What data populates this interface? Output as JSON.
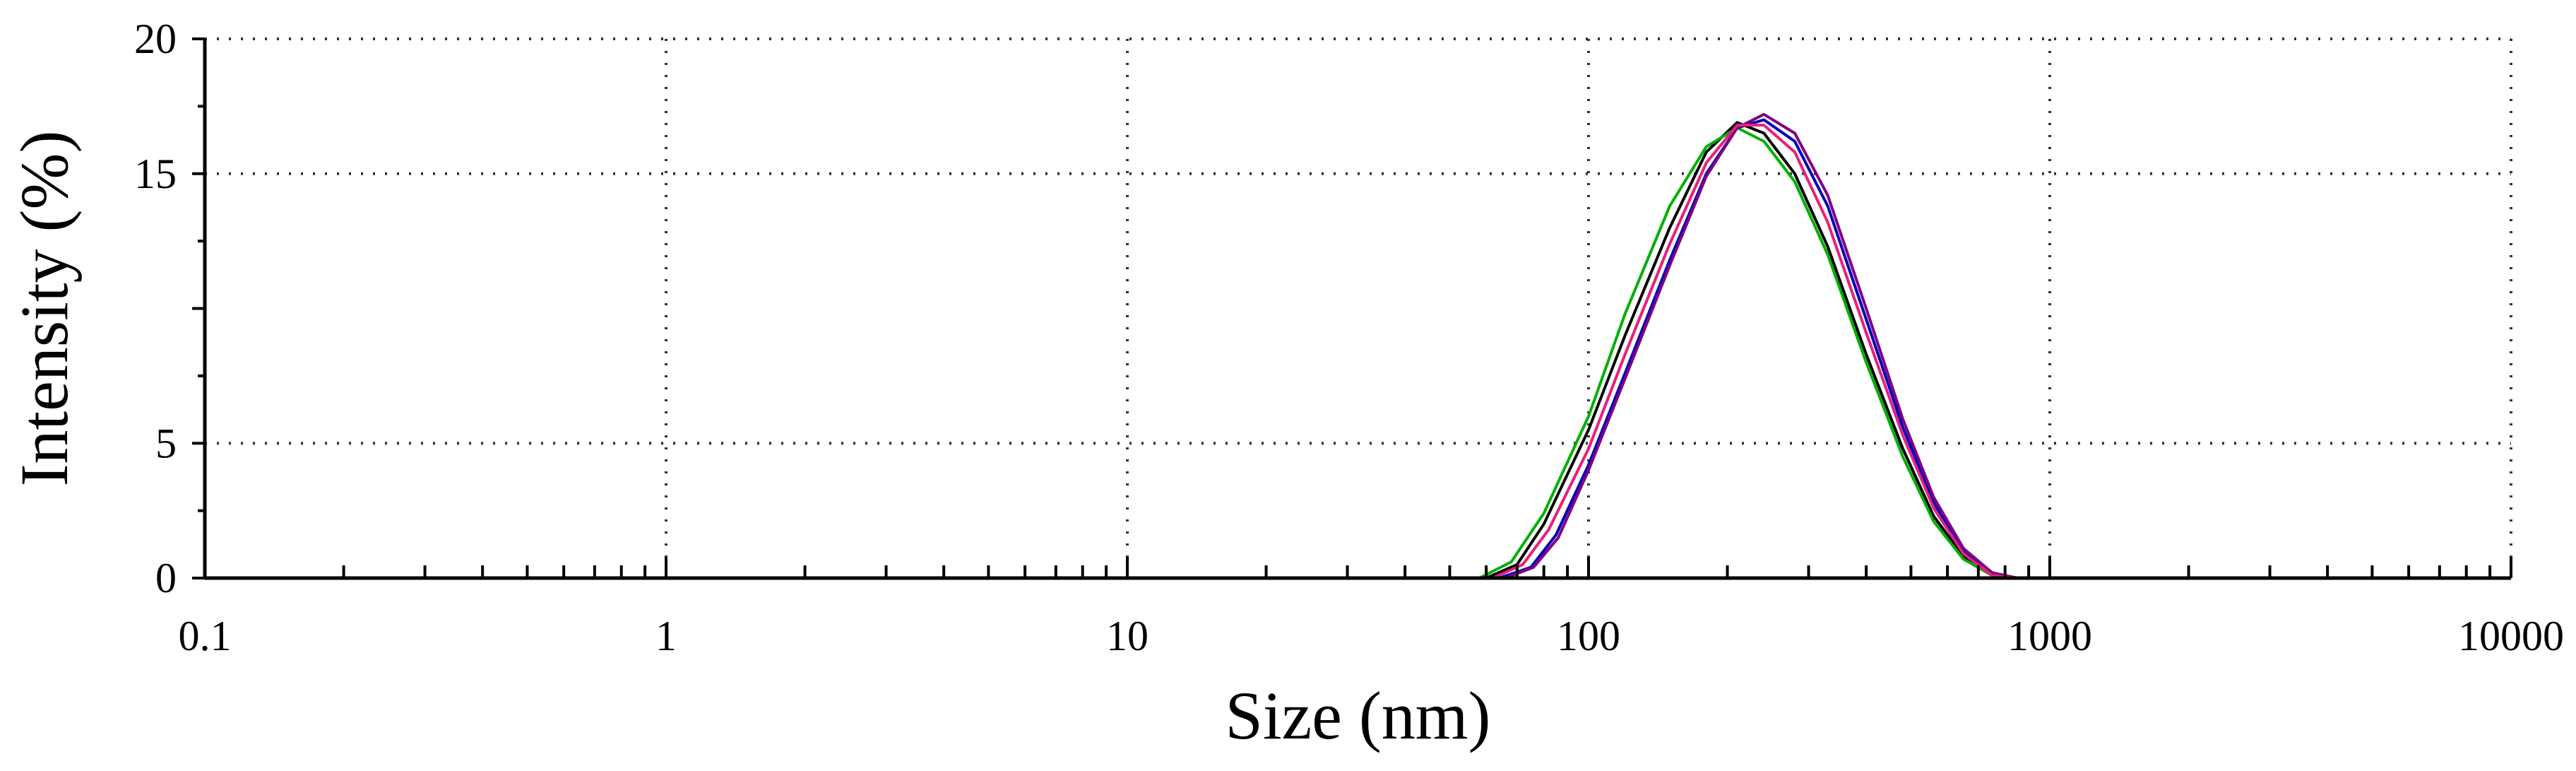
{
  "chart_data": {
    "type": "line",
    "xlabel": "Size (nm)",
    "ylabel": "Intensity (%)",
    "x_scale": "log",
    "xlim": [
      0.1,
      10000
    ],
    "ylim": [
      0,
      20
    ],
    "x_ticks": [
      0.1,
      1,
      10,
      100,
      1000,
      10000
    ],
    "x_tick_labels": [
      "0.1",
      "1",
      "10",
      "100",
      "1000",
      "10000"
    ],
    "y_ticks": [
      0,
      5,
      15,
      20
    ],
    "y_tick_labels": [
      "0",
      "5",
      "15",
      "20"
    ],
    "grid": true,
    "grid_style": "dotted",
    "legend": "none",
    "series": [
      {
        "color": "#000000",
        "x": [
          0.2,
          60,
          70,
          80,
          100,
          120,
          150,
          180,
          210,
          240,
          280,
          330,
          400,
          480,
          560,
          650,
          750,
          850,
          10000
        ],
        "y": [
          0,
          0,
          0.5,
          2,
          5.5,
          9,
          13,
          15.8,
          16.9,
          16.5,
          15,
          12.3,
          8.3,
          4.8,
          2.3,
          0.8,
          0.1,
          0,
          0
        ]
      },
      {
        "color": "#00b000",
        "x": [
          0.2,
          58,
          68,
          80,
          100,
          120,
          150,
          180,
          210,
          240,
          280,
          330,
          400,
          480,
          560,
          650,
          750,
          850,
          10000
        ],
        "y": [
          0,
          0,
          0.6,
          2.4,
          6,
          9.8,
          13.8,
          16,
          16.7,
          16.2,
          14.7,
          12,
          8,
          4.5,
          2.1,
          0.7,
          0.1,
          0,
          0
        ]
      },
      {
        "color": "#0000c0",
        "x": [
          0.2,
          64,
          75,
          85,
          100,
          120,
          150,
          180,
          210,
          240,
          280,
          330,
          400,
          480,
          560,
          650,
          750,
          850,
          10000
        ],
        "y": [
          0,
          0,
          0.4,
          1.6,
          4.2,
          7.6,
          11.8,
          15,
          16.7,
          17,
          16.2,
          13.8,
          9.6,
          5.6,
          2.8,
          1,
          0.2,
          0,
          0
        ]
      },
      {
        "color": "#800080",
        "x": [
          0.2,
          66,
          76,
          86,
          100,
          120,
          150,
          180,
          210,
          240,
          280,
          330,
          400,
          480,
          560,
          650,
          750,
          850,
          10000
        ],
        "y": [
          0,
          0,
          0.4,
          1.5,
          4,
          7.4,
          11.6,
          14.9,
          16.7,
          17.2,
          16.5,
          14.2,
          10,
          5.9,
          3,
          1.1,
          0.2,
          0,
          0
        ]
      },
      {
        "color": "#e8207a",
        "x": [
          0.2,
          62,
          72,
          82,
          100,
          120,
          150,
          180,
          210,
          240,
          280,
          330,
          400,
          480,
          560,
          650,
          750,
          850,
          10000
        ],
        "y": [
          0,
          0,
          0.5,
          1.8,
          4.8,
          8.3,
          12.4,
          15.4,
          16.8,
          16.8,
          15.8,
          13.2,
          9.1,
          5.3,
          2.6,
          0.9,
          0.1,
          0,
          0
        ]
      }
    ]
  }
}
